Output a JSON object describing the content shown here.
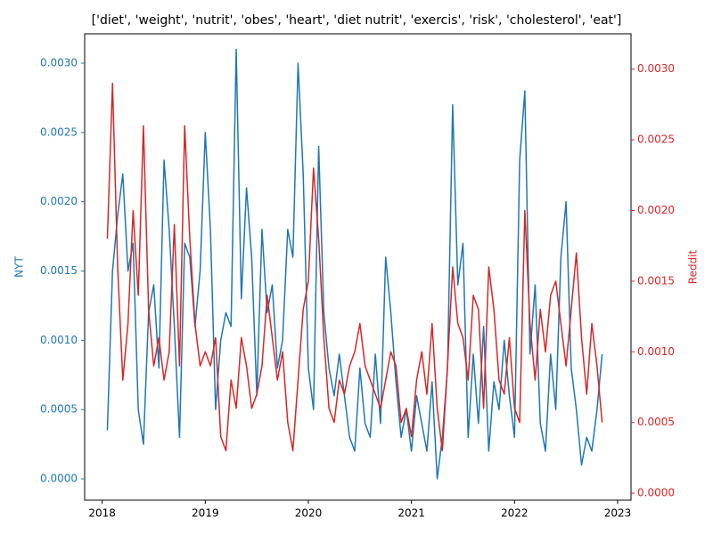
{
  "chart_data": {
    "type": "line",
    "title": "['diet', 'weight', 'nutrit', 'obes', 'heart', 'diet nutrit', 'exercis', 'risk', 'cholesterol', 'eat']",
    "y_label": "NYT",
    "y2_label": "Reddit",
    "x": [
      2018.05,
      2018.1,
      2018.15,
      2018.2,
      2018.25,
      2018.3,
      2018.35,
      2018.4,
      2018.45,
      2018.5,
      2018.55,
      2018.6,
      2018.65,
      2018.7,
      2018.75,
      2018.8,
      2018.85,
      2018.9,
      2018.95,
      2019.0,
      2019.05,
      2019.1,
      2019.15,
      2019.2,
      2019.25,
      2019.3,
      2019.35,
      2019.4,
      2019.45,
      2019.5,
      2019.55,
      2019.6,
      2019.65,
      2019.7,
      2019.75,
      2019.8,
      2019.85,
      2019.9,
      2019.95,
      2020.0,
      2020.05,
      2020.1,
      2020.15,
      2020.2,
      2020.25,
      2020.3,
      2020.35,
      2020.4,
      2020.45,
      2020.5,
      2020.55,
      2020.6,
      2020.65,
      2020.7,
      2020.75,
      2020.8,
      2020.85,
      2020.9,
      2020.95,
      2021.0,
      2021.05,
      2021.1,
      2021.15,
      2021.2,
      2021.25,
      2021.3,
      2021.35,
      2021.4,
      2021.45,
      2021.5,
      2021.55,
      2021.6,
      2021.65,
      2021.7,
      2021.75,
      2021.8,
      2021.85,
      2021.9,
      2021.95,
      2022.0,
      2022.05,
      2022.1,
      2022.15,
      2022.2,
      2022.25,
      2022.3,
      2022.35,
      2022.4,
      2022.45,
      2022.5,
      2022.55,
      2022.6,
      2022.65,
      2022.7,
      2022.75,
      2022.8,
      2022.85
    ],
    "series": [
      {
        "name": "NYT",
        "color": "#1f77b4",
        "axis": "y",
        "values": [
          0.00035,
          0.0015,
          0.0019,
          0.0022,
          0.0015,
          0.0017,
          0.0005,
          0.00025,
          0.0012,
          0.0014,
          0.0008,
          0.0023,
          0.0018,
          0.0011,
          0.0003,
          0.0017,
          0.0016,
          0.0011,
          0.0015,
          0.0025,
          0.0018,
          0.0005,
          0.001,
          0.0012,
          0.0011,
          0.0031,
          0.0013,
          0.0021,
          0.0016,
          0.0006,
          0.0018,
          0.0012,
          0.0014,
          0.0008,
          0.001,
          0.0018,
          0.0016,
          0.003,
          0.0022,
          0.0008,
          0.0005,
          0.0024,
          0.0012,
          0.0008,
          0.0006,
          0.0009,
          0.0006,
          0.0003,
          0.0002,
          0.0008,
          0.0004,
          0.0003,
          0.0009,
          0.0004,
          0.0016,
          0.0012,
          0.0007,
          0.0003,
          0.0005,
          0.0002,
          0.0006,
          0.0004,
          0.0002,
          0.0007,
          0.0,
          0.0003,
          0.0008,
          0.0027,
          0.0014,
          0.0017,
          0.0003,
          0.0009,
          0.0004,
          0.0011,
          0.0002,
          0.0007,
          0.0005,
          0.001,
          0.0006,
          0.0003,
          0.0023,
          0.0028,
          0.0009,
          0.0014,
          0.0004,
          0.0002,
          0.0009,
          0.0005,
          0.0016,
          0.002,
          0.0008,
          0.0005,
          0.0001,
          0.0003,
          0.0002,
          0.0005,
          0.0009
        ]
      },
      {
        "name": "Reddit",
        "color": "#d62728",
        "axis": "y2",
        "values": [
          0.0018,
          0.0029,
          0.0016,
          0.0008,
          0.0012,
          0.002,
          0.0014,
          0.0026,
          0.0013,
          0.0009,
          0.0011,
          0.0008,
          0.001,
          0.0019,
          0.0009,
          0.0026,
          0.0018,
          0.0012,
          0.0009,
          0.001,
          0.0009,
          0.0011,
          0.0004,
          0.0003,
          0.0008,
          0.0006,
          0.0011,
          0.0009,
          0.0006,
          0.0007,
          0.0009,
          0.0014,
          0.0011,
          0.0008,
          0.001,
          0.0005,
          0.0003,
          0.0008,
          0.0013,
          0.0015,
          0.0023,
          0.0018,
          0.0011,
          0.0006,
          0.0005,
          0.0008,
          0.0007,
          0.0009,
          0.001,
          0.0012,
          0.0009,
          0.0008,
          0.0007,
          0.0006,
          0.0008,
          0.001,
          0.0009,
          0.0005,
          0.0006,
          0.0004,
          0.0008,
          0.001,
          0.0007,
          0.0012,
          0.0006,
          0.0003,
          0.0009,
          0.0016,
          0.0012,
          0.0011,
          0.0008,
          0.0014,
          0.0013,
          0.0006,
          0.0016,
          0.0013,
          0.0008,
          0.0007,
          0.0011,
          0.0006,
          0.0005,
          0.002,
          0.0012,
          0.0008,
          0.0013,
          0.001,
          0.0014,
          0.0015,
          0.0012,
          0.0009,
          0.0013,
          0.0017,
          0.0011,
          0.0007,
          0.0012,
          0.0009,
          0.0005
        ]
      }
    ],
    "xlim": [
      2017.83,
      2023.13
    ],
    "xticks": [
      2018,
      2019,
      2020,
      2021,
      2022,
      2023
    ],
    "ylim": [
      -0.000154,
      0.003212
    ],
    "yticks": [
      {
        "value": 0,
        "label": "0.0000"
      },
      {
        "value": 0.0005,
        "label": "0.0005"
      },
      {
        "value": 0.001,
        "label": "0.0010"
      },
      {
        "value": 0.0015,
        "label": "0.0015"
      },
      {
        "value": 0.002,
        "label": "0.0020"
      },
      {
        "value": 0.0025,
        "label": "0.0025"
      },
      {
        "value": 0.003,
        "label": "0.0030"
      }
    ],
    "y2lim": [
      -5e-05,
      0.00325
    ],
    "y2ticks": [
      {
        "value": 0,
        "label": "0.0000"
      },
      {
        "value": 0.0005,
        "label": "0.0005"
      },
      {
        "value": 0.001,
        "label": "0.0010"
      },
      {
        "value": 0.0015,
        "label": "0.0015"
      },
      {
        "value": 0.002,
        "label": "0.0020"
      },
      {
        "value": 0.0025,
        "label": "0.0025"
      },
      {
        "value": 0.003,
        "label": "0.0030"
      }
    ]
  }
}
